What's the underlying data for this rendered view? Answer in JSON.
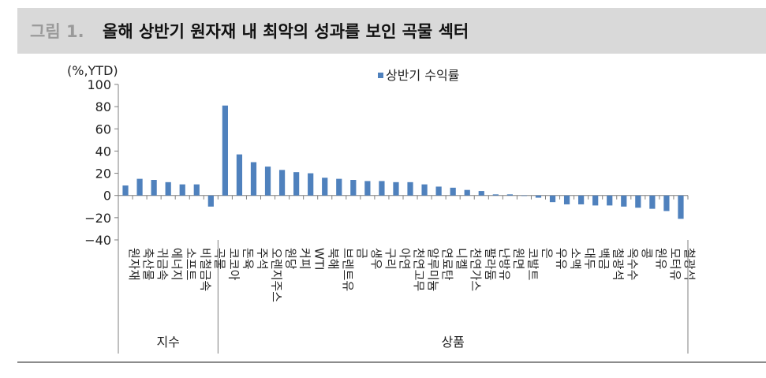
{
  "figure": {
    "prefix": "그림 1.",
    "title": "올해 상반기 원자재 내 최악의 성과를 보인 곡물 섹터"
  },
  "chart_data": {
    "type": "bar",
    "unit_label": "(%,YTD)",
    "series": [
      {
        "name": "상반기 수익률",
        "color": "#4f81bd",
        "values": [
          9,
          15,
          14,
          12,
          10,
          10,
          -10,
          81,
          37,
          30,
          26,
          23,
          21,
          20,
          16,
          15,
          14,
          13,
          13,
          12,
          12,
          10,
          8,
          7,
          5,
          4,
          1,
          1,
          0,
          -2,
          -6,
          -8,
          -8,
          -9,
          -9,
          -10,
          -11,
          -12,
          -14,
          -21
        ]
      }
    ],
    "categories": [
      "원자재",
      "축산물",
      "귀금속",
      "에너지",
      "소프트",
      "비철금속",
      "곡물",
      "코코아",
      "돈육",
      "주석",
      "오렌지주스",
      "원당",
      "커피",
      "WTI",
      "북해",
      "브렌트유",
      "금",
      "생우",
      "구리",
      "아연",
      "천연고무",
      "알루미늄",
      "연료탄",
      "니켈",
      "천연가스",
      "팔라듐",
      "난방유",
      "원면",
      "코발트",
      "은",
      "우유",
      "소맥",
      "대두",
      "백금",
      "철광석",
      "옥수수",
      "콩",
      "원유",
      "모터유",
      "철광석"
    ],
    "category_labels": [
      "원자재",
      "축산물",
      "귀금속",
      "에너지",
      "소프트",
      "비철금속",
      "곡물",
      "코코아",
      "돈육",
      "주석",
      "오렌지주스",
      "원당",
      "커피",
      "WTI",
      "북해",
      "브렌트유",
      "금",
      "생우",
      "구리",
      "아연",
      "천연고무",
      "알루미늄",
      "연료탄",
      "니켈",
      "천연가스",
      "팔라듐",
      "난방유",
      "원면",
      "코발트",
      "은",
      "우유",
      "소맥",
      "대두",
      "백금",
      "철광석",
      "옥수수",
      "콩",
      "원유",
      "모터유",
      "철광석"
    ],
    "groups": [
      {
        "label": "지수",
        "count": 7
      },
      {
        "label": "상품",
        "count": 33
      }
    ],
    "yticks": [
      "100",
      "80",
      "60",
      "40",
      "20",
      "0",
      "−20",
      "−40"
    ],
    "ylim": [
      -40,
      100
    ],
    "legend_position": "top-center",
    "grid": false
  }
}
